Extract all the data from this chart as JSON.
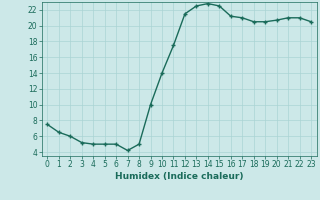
{
  "x": [
    0,
    1,
    2,
    3,
    4,
    5,
    6,
    7,
    8,
    9,
    10,
    11,
    12,
    13,
    14,
    15,
    16,
    17,
    18,
    19,
    20,
    21,
    22,
    23
  ],
  "y": [
    7.5,
    6.5,
    6.0,
    5.2,
    5.0,
    5.0,
    5.0,
    4.2,
    5.0,
    10.0,
    14.0,
    17.5,
    21.5,
    22.5,
    22.8,
    22.5,
    21.2,
    21.0,
    20.5,
    20.5,
    20.7,
    21.0,
    21.0,
    20.5
  ],
  "line_color": "#1a6b5a",
  "marker": "+",
  "marker_color": "#1a6b5a",
  "bg_color": "#cce8e8",
  "grid_color": "#aad4d4",
  "xlabel": "Humidex (Indice chaleur)",
  "xlim": [
    -0.5,
    23.5
  ],
  "ylim": [
    3.5,
    23.0
  ],
  "yticks": [
    4,
    6,
    8,
    10,
    12,
    14,
    16,
    18,
    20,
    22
  ],
  "xticks": [
    0,
    1,
    2,
    3,
    4,
    5,
    6,
    7,
    8,
    9,
    10,
    11,
    12,
    13,
    14,
    15,
    16,
    17,
    18,
    19,
    20,
    21,
    22,
    23
  ],
  "tick_fontsize": 5.5,
  "xlabel_fontsize": 6.5,
  "linewidth": 1.0,
  "markersize": 3.5
}
